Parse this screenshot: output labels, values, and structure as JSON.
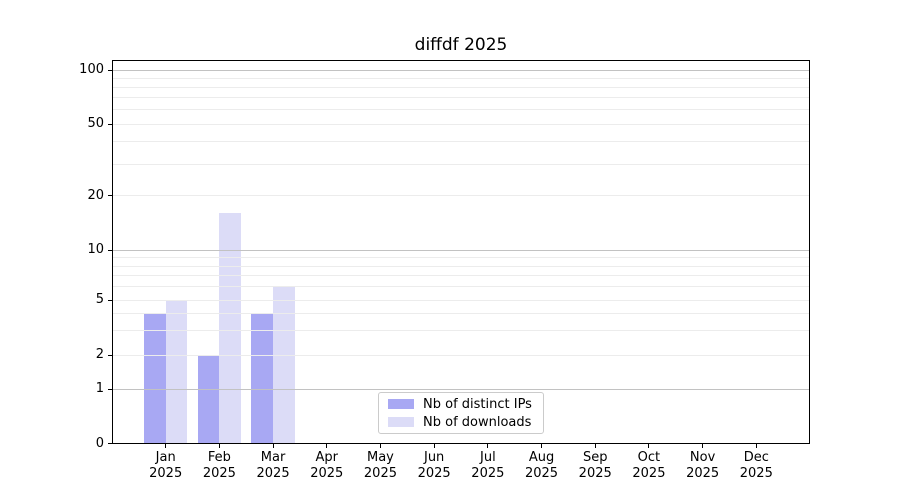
{
  "window": {
    "background": "#ffffff"
  },
  "chart_data": {
    "type": "bar",
    "title": "diffdf 2025",
    "categories": [
      "Jan 2025",
      "Feb 2025",
      "Mar 2025",
      "Apr 2025",
      "May 2025",
      "Jun 2025",
      "Jul 2025",
      "Aug 2025",
      "Sep 2025",
      "Oct 2025",
      "Nov 2025",
      "Dec 2025"
    ],
    "months": [
      "Jan",
      "Feb",
      "Mar",
      "Apr",
      "May",
      "Jun",
      "Jul",
      "Aug",
      "Sep",
      "Oct",
      "Nov",
      "Dec"
    ],
    "year": "2025",
    "series": [
      {
        "name": "Nb of distinct IPs",
        "slug": "distinct-ips",
        "color": "#a8a8f3",
        "values": [
          4,
          2,
          4,
          0,
          0,
          0,
          0,
          0,
          0,
          0,
          0,
          0
        ]
      },
      {
        "name": "Nb of downloads",
        "slug": "downloads",
        "color": "#dcdcf7",
        "values": [
          5,
          16,
          6,
          0,
          0,
          0,
          0,
          0,
          0,
          0,
          0,
          0
        ]
      }
    ],
    "xlabel": "",
    "ylabel": "",
    "ylim": [
      0,
      113
    ],
    "y_axis": {
      "scale": "log-like (linear below 1)",
      "tick_values": [
        0,
        1,
        2,
        5,
        10,
        20,
        50,
        100
      ],
      "tick_labels": [
        "0",
        "1",
        "2",
        "5",
        "10",
        "20",
        "50",
        "100"
      ],
      "grid": true,
      "grid_minor_values": [
        2,
        3,
        4,
        5,
        6,
        7,
        8,
        9,
        20,
        30,
        40,
        50,
        60,
        70,
        80,
        90
      ],
      "grid_major_values": [
        1,
        10,
        100
      ],
      "grid_minor_color": "#ececec",
      "grid_major_color": "#c2c2c2"
    },
    "legend": {
      "location": "lower center",
      "entries": [
        "Nb of distinct IPs",
        "Nb of downloads"
      ]
    },
    "axis_color": "#000000",
    "text_color": "#000000"
  }
}
